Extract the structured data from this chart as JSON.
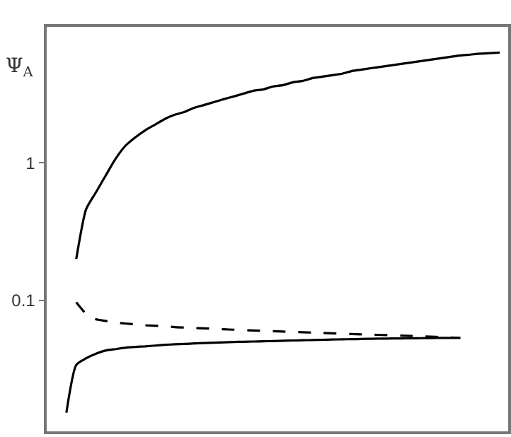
{
  "chart_data": {
    "type": "line",
    "ylabel": "Ψ$_{A}$",
    "log": true,
    "ylim": [
      0.0112,
      9.7
    ],
    "yticks": [
      0.1,
      1
    ],
    "marker": "none",
    "tick_labels": "y",
    "categories": [
      null,
      null,
      null,
      null,
      null,
      null,
      null,
      null,
      null,
      null,
      null,
      null,
      null,
      null,
      null,
      null,
      null,
      null,
      null,
      null,
      null,
      null,
      null,
      null,
      null,
      null,
      null,
      null,
      null,
      null,
      null,
      null,
      null,
      null,
      null,
      null,
      null,
      null,
      null,
      null,
      null,
      null,
      null,
      null,
      null
    ],
    "series": [
      {
        "color": "#000000",
        "line_style": "solid",
        "values": [
          null,
          0.2,
          0.46,
          0.61,
          0.81,
          1.07,
          1.33,
          1.53,
          1.72,
          1.89,
          2.08,
          2.23,
          2.34,
          2.51,
          2.63,
          2.76,
          2.9,
          3.03,
          3.18,
          3.33,
          3.41,
          3.58,
          3.66,
          3.84,
          3.93,
          4.12,
          4.22,
          4.32,
          4.43,
          4.64,
          4.75,
          4.87,
          4.98,
          5.1,
          5.22,
          5.35,
          5.47,
          5.61,
          5.74,
          5.88,
          6.02,
          6.1,
          6.2,
          6.25,
          6.31
        ]
      },
      {
        "color": "#000000",
        "line_style": "dashed",
        "values": [
          null,
          0.097,
          0.08,
          0.073,
          0.071,
          0.069,
          0.068,
          0.067,
          0.066,
          0.0655,
          0.065,
          0.064,
          0.0635,
          0.063,
          0.0627,
          0.0622,
          0.0617,
          0.0613,
          0.0609,
          0.0605,
          0.0602,
          0.0598,
          0.0594,
          0.059,
          0.0588,
          0.0584,
          0.058,
          0.0577,
          0.0574,
          0.057,
          0.0567,
          0.0564,
          0.0561,
          0.0558,
          0.0555,
          0.0552,
          0.0548,
          0.0545,
          0.0542,
          0.0538,
          0.0535,
          null,
          null,
          null,
          null
        ]
      },
      {
        "color": "#000000",
        "line_style": "solid",
        "values": [
          0.0153,
          0.034,
          0.038,
          0.041,
          0.0433,
          0.0443,
          0.0454,
          0.046,
          0.0464,
          0.047,
          0.0476,
          0.048,
          0.0483,
          0.0487,
          0.049,
          0.0493,
          0.0496,
          0.0499,
          0.0501,
          0.0503,
          0.0505,
          0.0507,
          0.051,
          0.0512,
          0.0514,
          0.0516,
          0.0518,
          0.052,
          0.0522,
          0.0523,
          0.0525,
          0.0527,
          0.0528,
          0.0529,
          0.053,
          0.0531,
          0.0532,
          0.0533,
          0.0534,
          0.0534,
          0.0535,
          null,
          null,
          null,
          null
        ]
      }
    ]
  }
}
